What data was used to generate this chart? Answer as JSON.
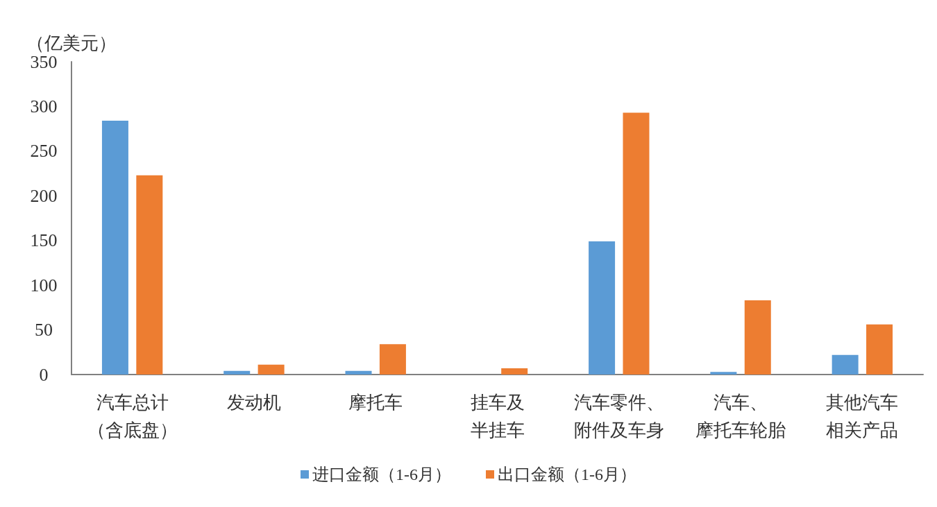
{
  "chart_data": {
    "type": "bar",
    "ylabel": "（亿美元）",
    "categories": [
      "汽车总计（含底盘）",
      "发动机",
      "摩托车",
      "挂车及半挂车",
      "汽车零件、附件及车身",
      "汽车、摩托车轮胎",
      "其他汽车相关产品"
    ],
    "series": [
      {
        "name": "进口金额（1-6月）",
        "color": "#5b9bd5",
        "values": [
          284,
          4,
          4,
          0,
          149,
          3,
          22
        ]
      },
      {
        "name": "出口金额（1-6月）",
        "color": "#ed7d31",
        "values": [
          223,
          11,
          34,
          7,
          293,
          83,
          56
        ]
      }
    ],
    "ylim": [
      0,
      350
    ],
    "yticks": [
      0,
      50,
      100,
      150,
      200,
      250,
      300,
      350
    ],
    "grid": false,
    "legend": "bottom"
  }
}
